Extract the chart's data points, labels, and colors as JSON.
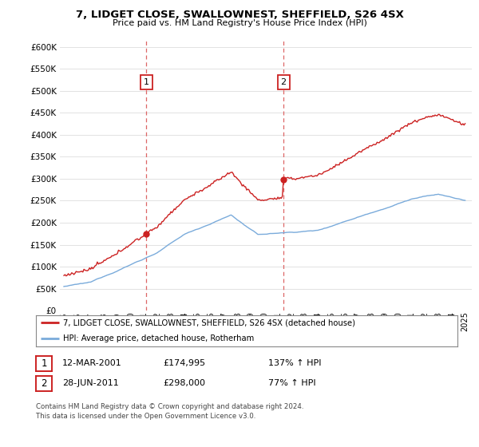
{
  "title": "7, LIDGET CLOSE, SWALLOWNEST, SHEFFIELD, S26 4SX",
  "subtitle": "Price paid vs. HM Land Registry's House Price Index (HPI)",
  "ylim": [
    0,
    620000
  ],
  "yticks": [
    0,
    50000,
    100000,
    150000,
    200000,
    250000,
    300000,
    350000,
    400000,
    450000,
    500000,
    550000,
    600000
  ],
  "hpi_color": "#7aabdb",
  "price_color": "#cc2222",
  "vline_color": "#dd6666",
  "background_color": "#ffffff",
  "grid_color": "#dddddd",
  "legend_line1": "7, LIDGET CLOSE, SWALLOWNEST, SHEFFIELD, S26 4SX (detached house)",
  "legend_line2": "HPI: Average price, detached house, Rotherham",
  "table_row1": [
    "1",
    "12-MAR-2001",
    "£174,995",
    "137% ↑ HPI"
  ],
  "table_row2": [
    "2",
    "28-JUN-2011",
    "£298,000",
    "77% ↑ HPI"
  ],
  "footnote": "Contains HM Land Registry data © Crown copyright and database right 2024.\nThis data is licensed under the Open Government Licence v3.0.",
  "m1": 74,
  "m2": 197,
  "price1": 174995,
  "price2": 298000,
  "xstart_year": 1995,
  "xend_year": 2025,
  "n_months": 361
}
